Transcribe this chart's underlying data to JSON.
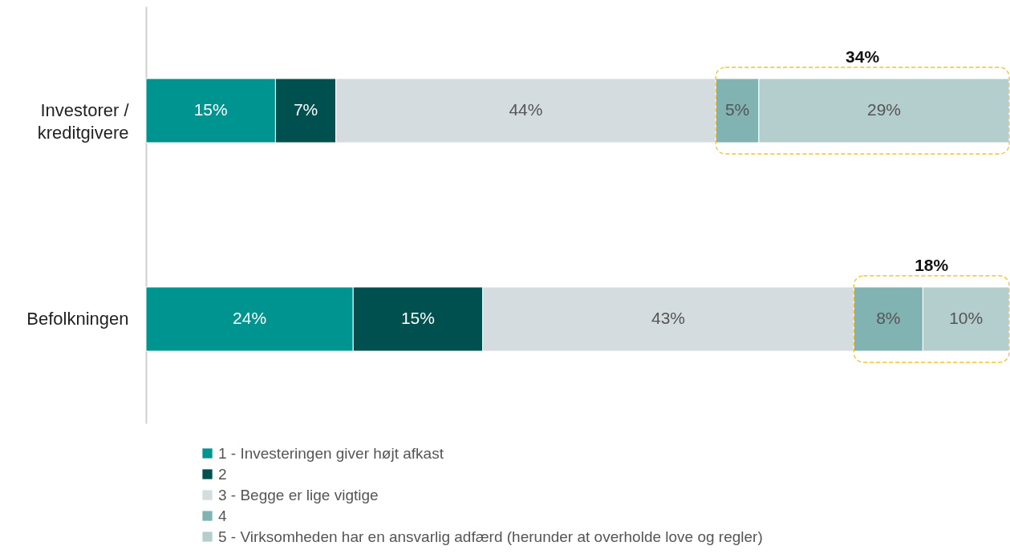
{
  "chart_data": {
    "type": "bar",
    "orientation": "horizontal",
    "stacked": true,
    "categories": [
      "Investorer / kreditgivere",
      "Befolkningen"
    ],
    "series": [
      {
        "name": "1 - Investeringen giver højt afkast",
        "color": "#009490",
        "values": [
          15,
          24
        ],
        "value_labels": [
          "15%",
          "24%"
        ]
      },
      {
        "name": "2",
        "color": "#00504f",
        "values": [
          7,
          15
        ],
        "value_labels": [
          "7%",
          "15%"
        ]
      },
      {
        "name": "3 - Begge er lige vigtige",
        "color": "#d5dcdf",
        "values": [
          44,
          43
        ],
        "value_labels": [
          "44%",
          "43%"
        ]
      },
      {
        "name": "4",
        "color": "#80b3b1",
        "values": [
          5,
          8
        ],
        "value_labels": [
          "5%",
          "8%"
        ]
      },
      {
        "name": "5 - Virksomheden har en ansvarlig adfærd (herunder at overholde love og regler)",
        "color": "#b3cecd",
        "values": [
          29,
          10
        ],
        "value_labels": [
          "29%",
          "10%"
        ]
      }
    ],
    "xlim": [
      0,
      100
    ],
    "tick_labels": "y",
    "legend": "bottom",
    "annotations": [
      "34%",
      "18%"
    ]
  }
}
